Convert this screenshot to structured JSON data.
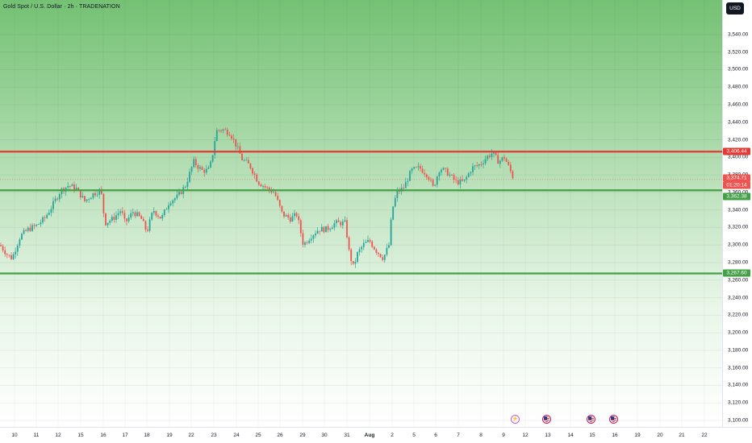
{
  "header": {
    "title": "Gold Spot / U.S. Dollar · 2h · TRADENATION"
  },
  "currency": "USD",
  "colors": {
    "up": "#26a69a",
    "down": "#ef5350",
    "resistance": "#e53935",
    "support": "#43a047"
  },
  "current_price": {
    "value": "3,374.71",
    "countdown": "01:20:14"
  },
  "levels": {
    "resistance": {
      "value": "3,406.44"
    },
    "support_upper": {
      "value": "3,362.38"
    },
    "support_lower": {
      "value": "3,267.60"
    }
  },
  "event_icons": [
    "lightning-icon",
    "us-flag-icon",
    "us-flag-icon",
    "us-flag-icon"
  ],
  "chart_data": {
    "type": "candlestick",
    "title": "Gold Spot / U.S. Dollar · 2h · TRADENATION",
    "xlabel": "",
    "ylabel": "",
    "ylim": [
      3090,
      3560
    ],
    "grid": true,
    "y_ticks": [
      3100,
      3120,
      3140,
      3160,
      3180,
      3200,
      3220,
      3240,
      3260,
      3280,
      3300,
      3320,
      3340,
      3360,
      3380,
      3400,
      3420,
      3440,
      3460,
      3480,
      3500,
      3520,
      3540
    ],
    "y_tick_labels": [
      "3,100.00",
      "3,120.00",
      "3,140.00",
      "3,160.00",
      "3,180.00",
      "3,200.00",
      "3,220.00",
      "3,240.00",
      "3,260.00",
      "3,280.00",
      "3,300.00",
      "3,320.00",
      "3,340.00",
      "3,360.00",
      "3,380.00",
      "3,400.00",
      "3,420.00",
      "3,440.00",
      "3,460.00",
      "3,480.00",
      "3,500.00",
      "3,520.00",
      "3,540.00"
    ],
    "x_labels": [
      "10",
      "11",
      "12",
      "15",
      "16",
      "17",
      "18",
      "19",
      "22",
      "23",
      "24",
      "25",
      "26",
      "29",
      "30",
      "31",
      "Aug",
      "2",
      "5",
      "6",
      "7",
      "8",
      "9",
      "12",
      "13",
      "14",
      "15",
      "16",
      "19",
      "20",
      "21",
      "22"
    ],
    "horizontal_lines": [
      {
        "value": 3406.44,
        "label": "3,406.44",
        "role": "resistance"
      },
      {
        "value": 3362.38,
        "label": "3,362.38",
        "role": "support"
      },
      {
        "value": 3267.6,
        "label": "3,267.60",
        "role": "support"
      }
    ],
    "current_price": 3374.71,
    "price_path": [
      [
        0,
        3300
      ],
      [
        10,
        3288
      ],
      [
        15,
        3285
      ],
      [
        25,
        3310
      ],
      [
        35,
        3318
      ],
      [
        45,
        3322
      ],
      [
        55,
        3330
      ],
      [
        65,
        3345
      ],
      [
        75,
        3362
      ],
      [
        85,
        3368
      ],
      [
        95,
        3364
      ],
      [
        105,
        3350
      ],
      [
        115,
        3358
      ],
      [
        125,
        3363
      ],
      [
        130,
        3325
      ],
      [
        140,
        3330
      ],
      [
        150,
        3340
      ],
      [
        155,
        3325
      ],
      [
        165,
        3338
      ],
      [
        175,
        3330
      ],
      [
        182,
        3315
      ],
      [
        190,
        3340
      ],
      [
        200,
        3330
      ],
      [
        210,
        3350
      ],
      [
        220,
        3355
      ],
      [
        230,
        3368
      ],
      [
        240,
        3395
      ],
      [
        250,
        3385
      ],
      [
        258,
        3385
      ],
      [
        262,
        3395
      ],
      [
        268,
        3430
      ],
      [
        275,
        3432
      ],
      [
        285,
        3428
      ],
      [
        292,
        3415
      ],
      [
        300,
        3398
      ],
      [
        310,
        3390
      ],
      [
        320,
        3372
      ],
      [
        330,
        3365
      ],
      [
        340,
        3360
      ],
      [
        350,
        3335
      ],
      [
        360,
        3330
      ],
      [
        368,
        3335
      ],
      [
        376,
        3300
      ],
      [
        385,
        3310
      ],
      [
        395,
        3318
      ],
      [
        405,
        3318
      ],
      [
        415,
        3325
      ],
      [
        428,
        3325
      ],
      [
        433,
        3290
      ],
      [
        438,
        3275
      ],
      [
        443,
        3290
      ],
      [
        450,
        3300
      ],
      [
        458,
        3305
      ],
      [
        465,
        3295
      ],
      [
        475,
        3285
      ],
      [
        482,
        3300
      ],
      [
        486,
        3340
      ],
      [
        492,
        3360
      ],
      [
        500,
        3365
      ],
      [
        510,
        3385
      ],
      [
        520,
        3388
      ],
      [
        530,
        3380
      ],
      [
        537,
        3365
      ],
      [
        545,
        3388
      ],
      [
        555,
        3382
      ],
      [
        565,
        3372
      ],
      [
        575,
        3372
      ],
      [
        585,
        3388
      ],
      [
        595,
        3392
      ],
      [
        603,
        3400
      ],
      [
        610,
        3405
      ],
      [
        618,
        3395
      ],
      [
        625,
        3400
      ],
      [
        630,
        3390
      ],
      [
        636,
        3377
      ]
    ]
  }
}
